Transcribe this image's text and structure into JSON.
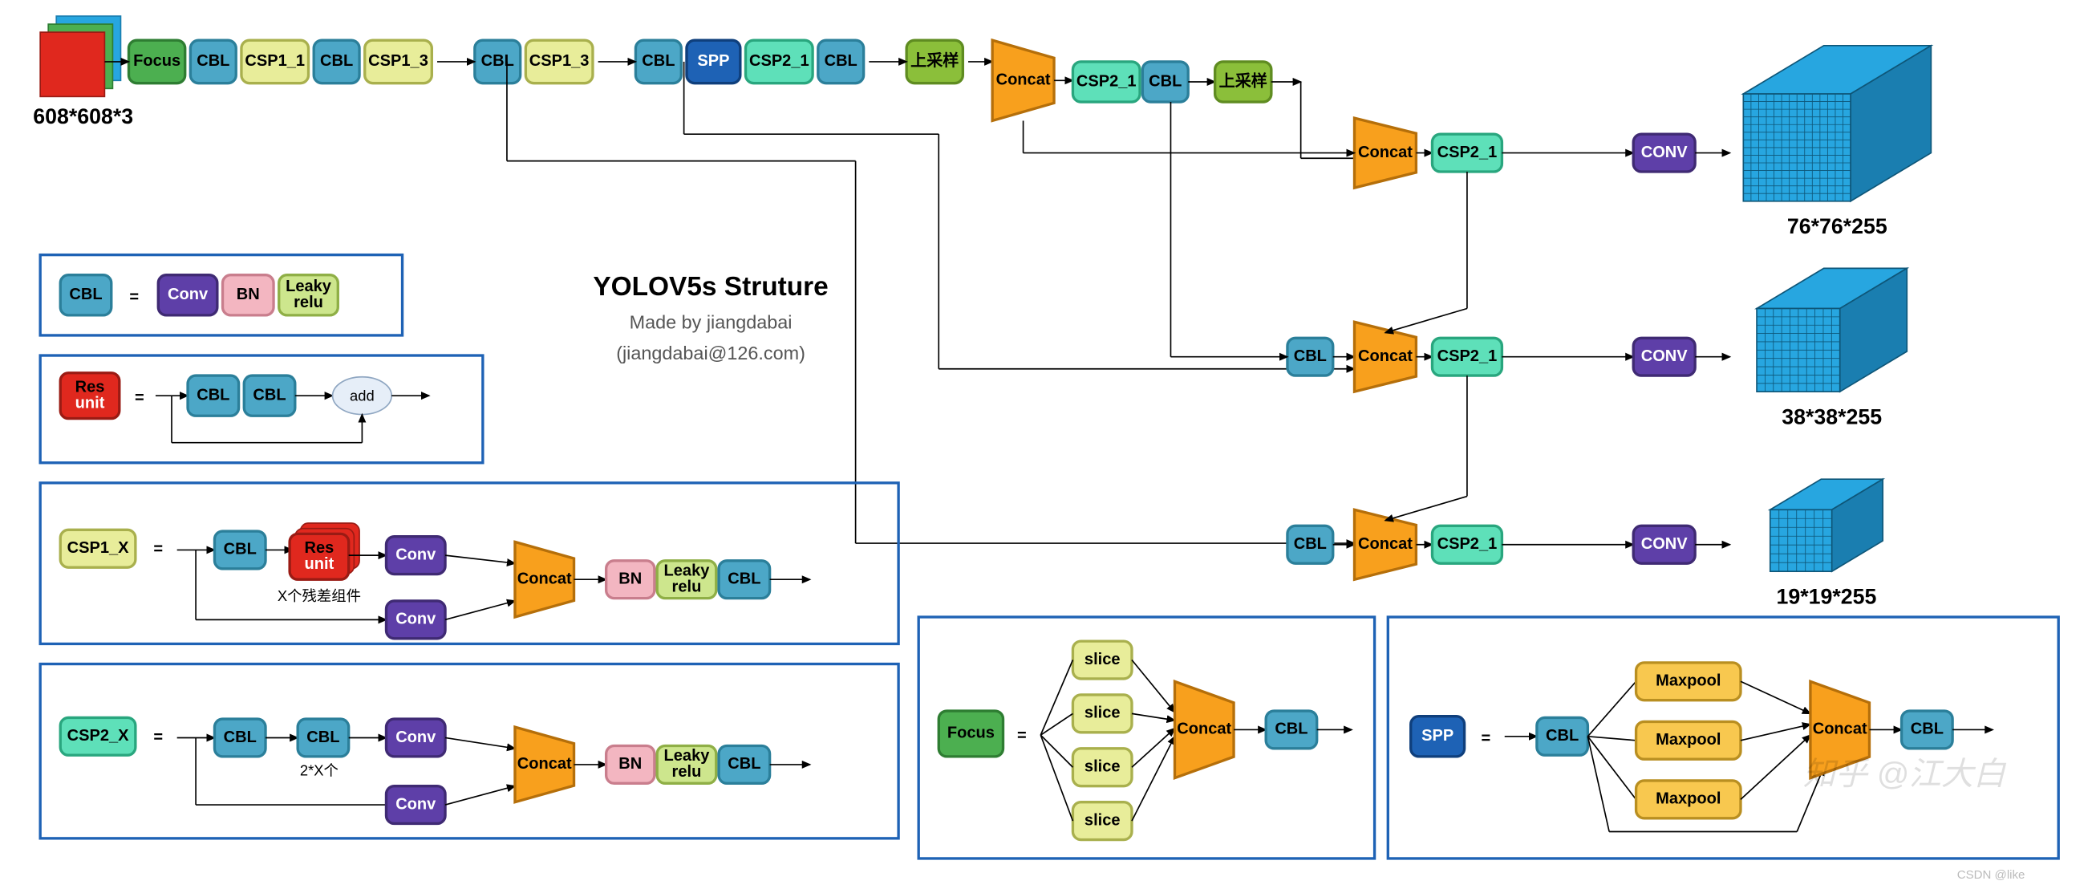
{
  "colors": {
    "focus": "#4caf50",
    "focus_b": "#2e7d32",
    "cbl": "#4ca7c7",
    "cbl_b": "#2b7f9a",
    "csp1": "#e8ed9a",
    "csp1_b": "#a9b04d",
    "csp2": "#5ee0b9",
    "csp2_b": "#29a67e",
    "spp": "#1e62b5",
    "spp_b": "#0f3f7c",
    "conv": "#5e3fa8",
    "conv_b": "#3f2a73",
    "concat": "#f8a01d",
    "concat_b": "#b56f0a",
    "upsample": "#8bbf3a",
    "upsample_b": "#5f8c21",
    "bn": "#f3b6c1",
    "bn_b": "#c97e8d",
    "leaky": "#cde68d",
    "leaky_b": "#8faf46",
    "res": "#e0281e",
    "res_b": "#9a1b14",
    "add": "#e6eef8",
    "add_b": "#90a7c2",
    "slice": "#e8ed9a",
    "slice_b": "#a9b04d",
    "maxpool": "#f8c84f",
    "maxpool_b": "#b98f21",
    "cube": "#27a6e0",
    "cube_side": "#1a7eb0",
    "cube_grid": "#0e5678",
    "input_red": "#e0281e",
    "input_teal": "#27a6e0",
    "panel": "#1e62b5",
    "arrow": "#000000"
  },
  "title": "YOLOV5s Struture",
  "made": "Made by jiangdabai",
  "email": "(jiangdabai@126.com)",
  "labels": {
    "focus": "Focus",
    "cbl": "CBL",
    "csp1_1": "CSP1_1",
    "csp1_3": "CSP1_3",
    "spp": "SPP",
    "csp2_1": "CSP2_1",
    "up": "上采样",
    "concat": "Concat",
    "conv": "Conv",
    "convU": "CONV",
    "bn": "BN",
    "leaky": "Leaky\nrelu",
    "res": "Res\nunit",
    "add": "add",
    "slice": "slice",
    "maxpool": "Maxpool",
    "csp1x": "CSP1_X",
    "csp2x": "CSP2_X",
    "eq": "="
  },
  "notes": {
    "resx": "X个残差组件",
    "twox": "2*X个"
  },
  "caps": {
    "in": "608*608*3",
    "o1": "76*76*255",
    "o2": "38*38*255",
    "o3": "19*19*255"
  },
  "watermark": "知乎 @江大白",
  "footer": "CSDN @like"
}
